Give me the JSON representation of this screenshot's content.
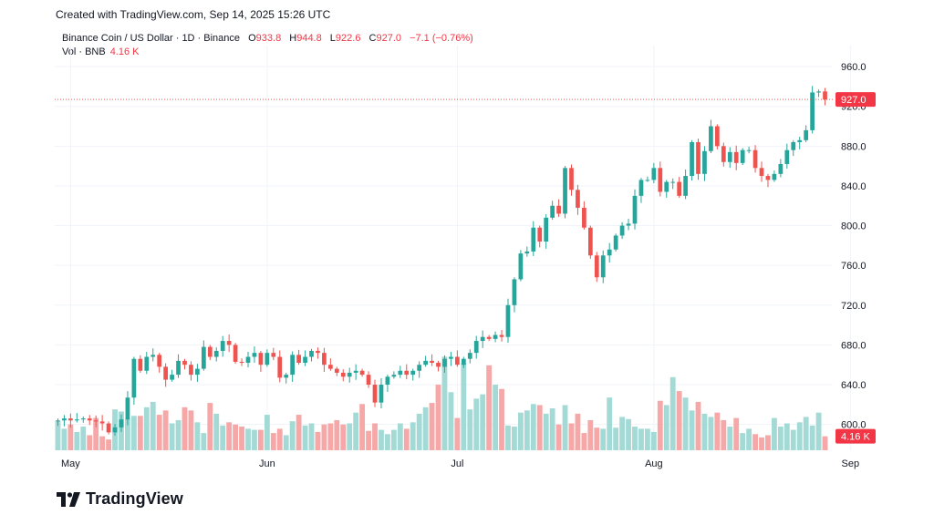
{
  "header": {
    "created_text": "Created with TradingView.com, Sep 14, 2025 15:26 UTC"
  },
  "legend": {
    "symbol": "Binance Coin / US Dollar · 1D · Binance",
    "open_label": "O",
    "open": "933.8",
    "high_label": "H",
    "high": "944.8",
    "low_label": "L",
    "low": "922.6",
    "close_label": "C",
    "close": "927.0",
    "change": "−7.1 (−0.76%)",
    "volume_label": "Vol · BNB",
    "volume": "4.16 K"
  },
  "brand": {
    "name": "TradingView"
  },
  "colors": {
    "up": "#26a69a",
    "down": "#ef5350",
    "up_vol": "#a3dad6",
    "down_vol": "#f5a8a7",
    "grid": "#f0f3fa"
  },
  "chart_data": {
    "type": "candlestick",
    "title": "Binance Coin / US Dollar · 1D · Binance",
    "x_tick_labels": [
      "May",
      "Jun",
      "Jul",
      "Aug",
      "Sep"
    ],
    "y_tick_labels": [
      "600.0",
      "640.0",
      "680.0",
      "720.0",
      "760.0",
      "800.0",
      "840.0",
      "880.0",
      "920.0",
      "960.0"
    ],
    "ylim": [
      574,
      972
    ],
    "last_price_label": "927.0",
    "last_volume_label": "4.16 K",
    "grid": true,
    "closes": [
      604,
      606,
      604,
      605,
      606,
      604,
      603,
      601,
      592,
      597,
      605,
      627,
      666,
      654,
      668,
      670,
      658,
      645,
      650,
      664,
      660,
      650,
      656,
      678,
      668,
      674,
      684,
      680,
      663,
      662,
      668,
      672,
      660,
      672,
      668,
      647,
      650,
      670,
      662,
      668,
      674,
      672,
      660,
      656,
      652,
      648,
      652,
      654,
      650,
      640,
      622,
      640,
      648,
      650,
      654,
      650,
      654,
      660,
      664,
      662,
      658,
      666,
      668,
      660,
      666,
      672,
      684,
      688,
      686,
      690,
      688,
      720,
      746,
      772,
      774,
      798,
      784,
      808,
      820,
      812,
      858,
      836,
      818,
      798,
      770,
      748,
      770,
      776,
      790,
      800,
      802,
      830,
      846,
      846,
      858,
      834,
      844,
      844,
      830,
      850,
      884,
      852,
      875,
      900,
      880,
      864,
      874,
      863,
      876,
      876,
      858,
      850,
      846,
      852,
      862,
      876,
      884,
      886,
      896,
      934,
      935,
      927
    ],
    "volume_levels": [
      0.27,
      0.2,
      0.24,
      0.17,
      0.22,
      0.14,
      0.3,
      0.13,
      0.1,
      0.38,
      0.36,
      0.29,
      0.32,
      0.32,
      0.4,
      0.45,
      0.33,
      0.37,
      0.25,
      0.28,
      0.4,
      0.37,
      0.26,
      0.16,
      0.44,
      0.34,
      0.23,
      0.26,
      0.24,
      0.22,
      0.2,
      0.19,
      0.19,
      0.33,
      0.16,
      0.2,
      0.14,
      0.27,
      0.33,
      0.23,
      0.25,
      0.17,
      0.24,
      0.25,
      0.28,
      0.24,
      0.25,
      0.35,
      0.43,
      0.18,
      0.25,
      0.19,
      0.15,
      0.19,
      0.25,
      0.2,
      0.26,
      0.34,
      0.4,
      0.44,
      0.61,
      0.87,
      0.54,
      0.3,
      0.81,
      0.38,
      0.48,
      0.52,
      0.79,
      0.61,
      0.57,
      0.23,
      0.22,
      0.35,
      0.37,
      0.43,
      0.42,
      0.34,
      0.39,
      0.24,
      0.42,
      0.25,
      0.34,
      0.16,
      0.28,
      0.21,
      0.2,
      0.49,
      0.21,
      0.31,
      0.29,
      0.22,
      0.2,
      0.2,
      0.17,
      0.46,
      0.42,
      0.68,
      0.55,
      0.49,
      0.37,
      0.45,
      0.34,
      0.31,
      0.35,
      0.28,
      0.22,
      0.3,
      0.16,
      0.2,
      0.15,
      0.12,
      0.14,
      0.3,
      0.22,
      0.25,
      0.19,
      0.26,
      0.31,
      0.23,
      0.35,
      0.13
    ]
  }
}
